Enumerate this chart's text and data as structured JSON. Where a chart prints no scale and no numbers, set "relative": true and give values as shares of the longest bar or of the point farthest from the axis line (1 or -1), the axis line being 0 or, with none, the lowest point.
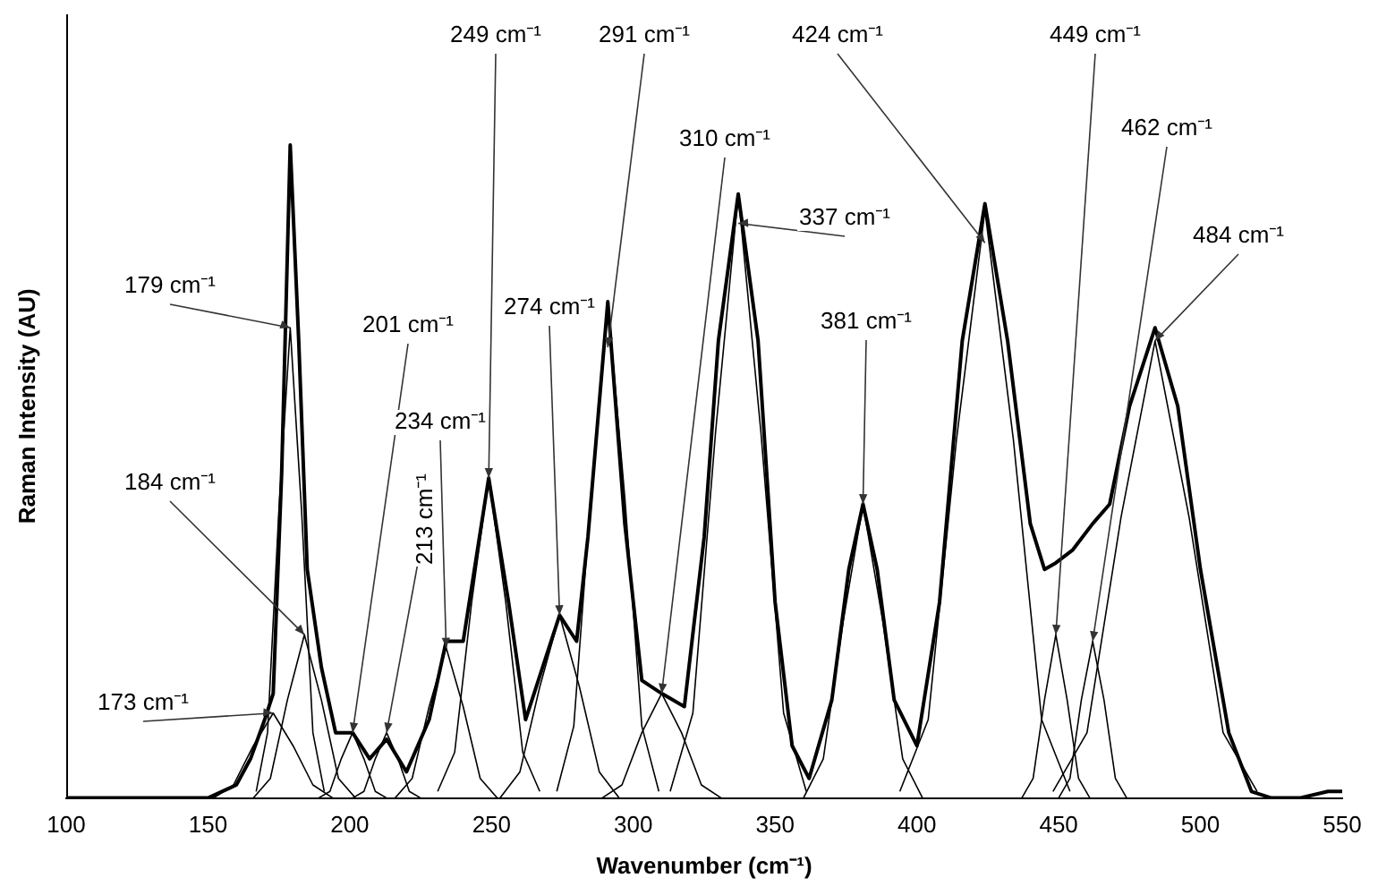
{
  "chart_data": {
    "type": "line",
    "relative": true,
    "xlabel": "Wavenumber (cm⁻¹)",
    "ylabel": "Raman Intensity (AU)",
    "xlim": [
      100,
      550
    ],
    "xticks": [
      100,
      150,
      200,
      250,
      300,
      350,
      400,
      450,
      500,
      550
    ],
    "grid": false,
    "legend": false,
    "marker": "none",
    "line_style": "solid",
    "series": [
      {
        "color": "#000000",
        "x": [
          100,
          150,
          160,
          165,
          170,
          173,
          176,
          179,
          182,
          185,
          190,
          195,
          201,
          207,
          213,
          220,
          228,
          234,
          240,
          249,
          256,
          262,
          268,
          274,
          280,
          284,
          291,
          297,
          303,
          310,
          318,
          325,
          330,
          337,
          344,
          350,
          356,
          362,
          370,
          376,
          381,
          386,
          392,
          400,
          408,
          416,
          424,
          432,
          440,
          445,
          449,
          455,
          462,
          468,
          475,
          484,
          492,
          500,
          510,
          518,
          525,
          535,
          545,
          550
        ],
        "values": [
          0,
          0,
          0.02,
          0.06,
          0.12,
          0.16,
          0.5,
          1,
          0.7,
          0.35,
          0.2,
          0.1,
          0.1,
          0.06,
          0.09,
          0.04,
          0.12,
          0.24,
          0.24,
          0.49,
          0.3,
          0.12,
          0.2,
          0.28,
          0.24,
          0.4,
          0.76,
          0.42,
          0.18,
          0.16,
          0.14,
          0.4,
          0.7,
          0.925,
          0.7,
          0.3,
          0.08,
          0.03,
          0.15,
          0.35,
          0.45,
          0.35,
          0.15,
          0.08,
          0.3,
          0.7,
          0.91,
          0.7,
          0.42,
          0.35,
          0.36,
          0.38,
          0.42,
          0.45,
          0.6,
          0.72,
          0.6,
          0.35,
          0.1,
          0.01,
          0,
          0,
          0.01,
          0.01
        ]
      },
      {
        "color": "#000000",
        "x": [
          152,
          159,
          166,
          173,
          180,
          187,
          194
        ],
        "values": [
          0,
          0.02,
          0.08,
          0.13,
          0.08,
          0.02,
          0
        ]
      },
      {
        "color": "#000000",
        "x": [
          167,
          171,
          175,
          179,
          183,
          187,
          191
        ],
        "values": [
          0.01,
          0.1,
          0.44,
          0.72,
          0.44,
          0.1,
          0.01
        ]
      },
      {
        "color": "#000000",
        "x": [
          166,
          172,
          178,
          184,
          190,
          196,
          202
        ],
        "values": [
          0,
          0.03,
          0.15,
          0.25,
          0.15,
          0.03,
          0
        ]
      },
      {
        "color": "#000000",
        "x": [
          189,
          193,
          197,
          201,
          205,
          209,
          213
        ],
        "values": [
          0,
          0.01,
          0.06,
          0.1,
          0.06,
          0.01,
          0
        ]
      },
      {
        "color": "#000000",
        "x": [
          201,
          205,
          209,
          213,
          217,
          221,
          225
        ],
        "values": [
          0,
          0.01,
          0.06,
          0.1,
          0.06,
          0.01,
          0
        ]
      },
      {
        "color": "#000000",
        "x": [
          216,
          222,
          228,
          234,
          240,
          246,
          252
        ],
        "values": [
          0,
          0.03,
          0.14,
          0.23,
          0.14,
          0.03,
          0
        ]
      },
      {
        "color": "#000000",
        "x": [
          231,
          237,
          243,
          249,
          255,
          261,
          267
        ],
        "values": [
          0.01,
          0.07,
          0.3,
          0.49,
          0.3,
          0.07,
          0.01
        ]
      },
      {
        "color": "#000000",
        "x": [
          253,
          260,
          267,
          274,
          281,
          288,
          295
        ],
        "values": [
          0,
          0.04,
          0.17,
          0.28,
          0.17,
          0.04,
          0
        ]
      },
      {
        "color": "#000000",
        "x": [
          273,
          279,
          285,
          291,
          297,
          303,
          309
        ],
        "values": [
          0.01,
          0.11,
          0.46,
          0.76,
          0.46,
          0.11,
          0.01
        ]
      },
      {
        "color": "#000000",
        "x": [
          289,
          296,
          303,
          310,
          317,
          324,
          331
        ],
        "values": [
          0,
          0.02,
          0.1,
          0.16,
          0.1,
          0.02,
          0
        ]
      },
      {
        "color": "#000000",
        "x": [
          313,
          321,
          329,
          337,
          345,
          353,
          361
        ],
        "values": [
          0.01,
          0.13,
          0.56,
          0.925,
          0.56,
          0.13,
          0.01
        ]
      },
      {
        "color": "#000000",
        "x": [
          360,
          367,
          374,
          381,
          388,
          395,
          402
        ],
        "values": [
          0,
          0.06,
          0.27,
          0.45,
          0.27,
          0.06,
          0
        ]
      },
      {
        "color": "#000000",
        "x": [
          394,
          404,
          414,
          424,
          434,
          444,
          454
        ],
        "values": [
          0.01,
          0.12,
          0.55,
          0.9,
          0.55,
          0.12,
          0.01
        ]
      },
      {
        "color": "#000000",
        "x": [
          437,
          441,
          445,
          449,
          453,
          457,
          461
        ],
        "values": [
          0,
          0.03,
          0.15,
          0.25,
          0.15,
          0.03,
          0
        ]
      },
      {
        "color": "#000000",
        "x": [
          450,
          454,
          458,
          462,
          466,
          470,
          474
        ],
        "values": [
          0,
          0.03,
          0.15,
          0.24,
          0.15,
          0.03,
          0
        ]
      },
      {
        "color": "#000000",
        "x": [
          448,
          460,
          472,
          484,
          496,
          508,
          520
        ],
        "values": [
          0.01,
          0.1,
          0.43,
          0.7,
          0.43,
          0.1,
          0.01
        ]
      }
    ],
    "annotations": [
      {
        "text": "173 cm⁻¹",
        "x": 173,
        "y": 0.13
      },
      {
        "text": "179 cm⁻¹",
        "x": 179,
        "y": 0.72
      },
      {
        "text": "184 cm⁻¹",
        "x": 184,
        "y": 0.25
      },
      {
        "text": "201 cm⁻¹",
        "x": 201,
        "y": 0.1
      },
      {
        "text": "213 cm⁻¹",
        "x": 213,
        "y": 0.1
      },
      {
        "text": "234 cm⁻¹",
        "x": 234,
        "y": 0.23
      },
      {
        "text": "249 cm⁻¹",
        "x": 249,
        "y": 0.49
      },
      {
        "text": "274 cm⁻¹",
        "x": 274,
        "y": 0.28
      },
      {
        "text": "291 cm⁻¹",
        "x": 291,
        "y": 0.69
      },
      {
        "text": "310 cm⁻¹",
        "x": 310,
        "y": 0.16
      },
      {
        "text": "337 cm⁻¹",
        "x": 337,
        "y": 0.88
      },
      {
        "text": "381 cm⁻¹",
        "x": 381,
        "y": 0.45
      },
      {
        "text": "424 cm⁻¹",
        "x": 424,
        "y": 0.85
      },
      {
        "text": "449 cm⁻¹",
        "x": 449,
        "y": 0.25
      },
      {
        "text": "462 cm⁻¹",
        "x": 462,
        "y": 0.24
      },
      {
        "text": "484 cm⁻¹",
        "x": 484,
        "y": 0.7
      }
    ]
  }
}
